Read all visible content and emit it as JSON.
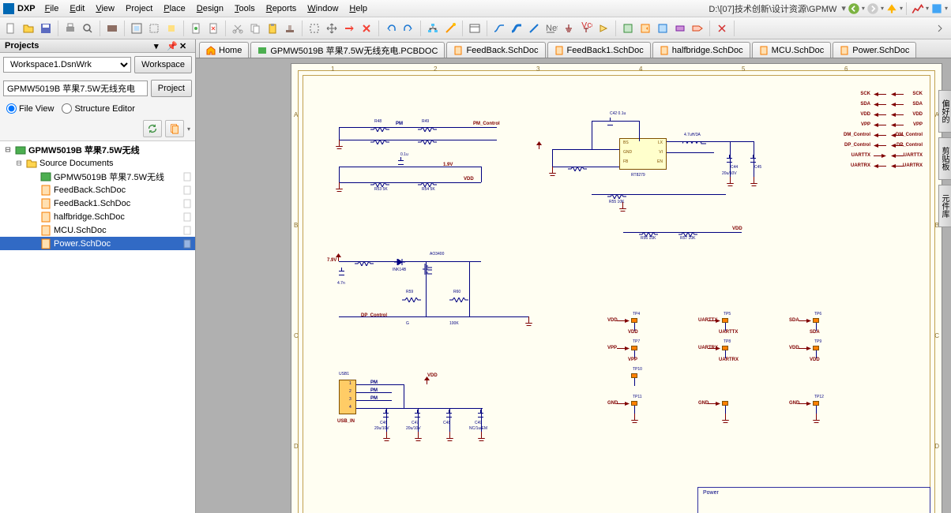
{
  "menu": {
    "dxp": "DXP",
    "items": [
      "File",
      "Edit",
      "View",
      "Project",
      "Place",
      "Design",
      "Tools",
      "Reports",
      "Window",
      "Help"
    ],
    "path": "D:\\[07]技术创新\\设计资源\\GPMW"
  },
  "panel": {
    "title": "Projects",
    "workspace": "Workspace1.DsnWrk",
    "ws_btn": "Workspace",
    "project": "GPMW5019B 苹果7.5W无线充电",
    "prj_btn": "Project",
    "view1": "File View",
    "view2": "Structure Editor"
  },
  "tree": {
    "root": "GPMW5019B 苹果7.5W无线",
    "src": "Source Documents",
    "docs": [
      "GPMW5019B 苹果7.5W无线",
      "FeedBack.SchDoc",
      "FeedBack1.SchDoc",
      "halfbridge.SchDoc",
      "MCU.SchDoc",
      "Power.SchDoc"
    ],
    "selected": 5
  },
  "tabs": {
    "home": "Home",
    "items": [
      "GPMW5019B 苹果7.5W无线充电.PCBDOC",
      "FeedBack.SchDoc",
      "FeedBack1.SchDoc",
      "halfbridge.SchDoc",
      "MCU.SchDoc",
      "Power.SchDoc"
    ]
  },
  "edge_tabs": [
    "偏好的",
    "剪贴板",
    "元件库"
  ],
  "schematic": {
    "grid_cols": [
      "1",
      "2",
      "3",
      "4",
      "5",
      "6"
    ],
    "grid_rows": [
      "A",
      "B",
      "C",
      "D"
    ],
    "ic1": {
      "pins": [
        "BS",
        "GND",
        "FB",
        "LX",
        "VI",
        "EN"
      ],
      "ref": "U?",
      "val": ""
    },
    "nets_right": [
      {
        "name": "SCK",
        "dir": "in"
      },
      {
        "name": "SDA",
        "dir": "in"
      },
      {
        "name": "VDD",
        "dir": "in"
      },
      {
        "name": "VPP",
        "dir": "in"
      },
      {
        "name": "DM_Control",
        "dir": "in"
      },
      {
        "name": "DP_Control",
        "dir": "in"
      },
      {
        "name": "UARTTX",
        "dir": "out"
      },
      {
        "name": "UARTRX",
        "dir": "in"
      }
    ],
    "nets_right2": [
      "SCK",
      "SDA",
      "VDD",
      "VPP",
      "DM_Control",
      "DP_Control",
      "UARTTX",
      "UARTRX"
    ],
    "testpoints": [
      [
        "VDD",
        "TP4",
        "UARTTX",
        "TP5",
        "SDA",
        "TP6"
      ],
      [
        "VPP",
        "TP7",
        "UARTRX",
        "TP8",
        "VDD",
        "TP9"
      ],
      [
        "",
        "TP10",
        "",
        "",
        "",
        ""
      ],
      [
        "GND",
        "TP11",
        "GND",
        "",
        "GND",
        "TP12"
      ]
    ],
    "conn_label": "USB_IN",
    "conn_pins": [
      "1",
      "2",
      "3",
      "4"
    ],
    "misc_labels": {
      "pm_control": "PM_Control",
      "dp_control": "DP_Control",
      "v19": "1.9V",
      "v79": "7.9V",
      "r47": "4.7n",
      "ao3400": "AO3400",
      "ink14b": "INK14B",
      "gr": "G",
      "r100k": "100K",
      "l47uh": "4.7uH/3A",
      "c01u": "0.1u",
      "c20u": "20u/10V",
      "ncwem": "NC/1u/EM",
      "c20u2": "20u/10V",
      "r10k": "10K",
      "r5k": "5K"
    },
    "title_block": "Power"
  }
}
